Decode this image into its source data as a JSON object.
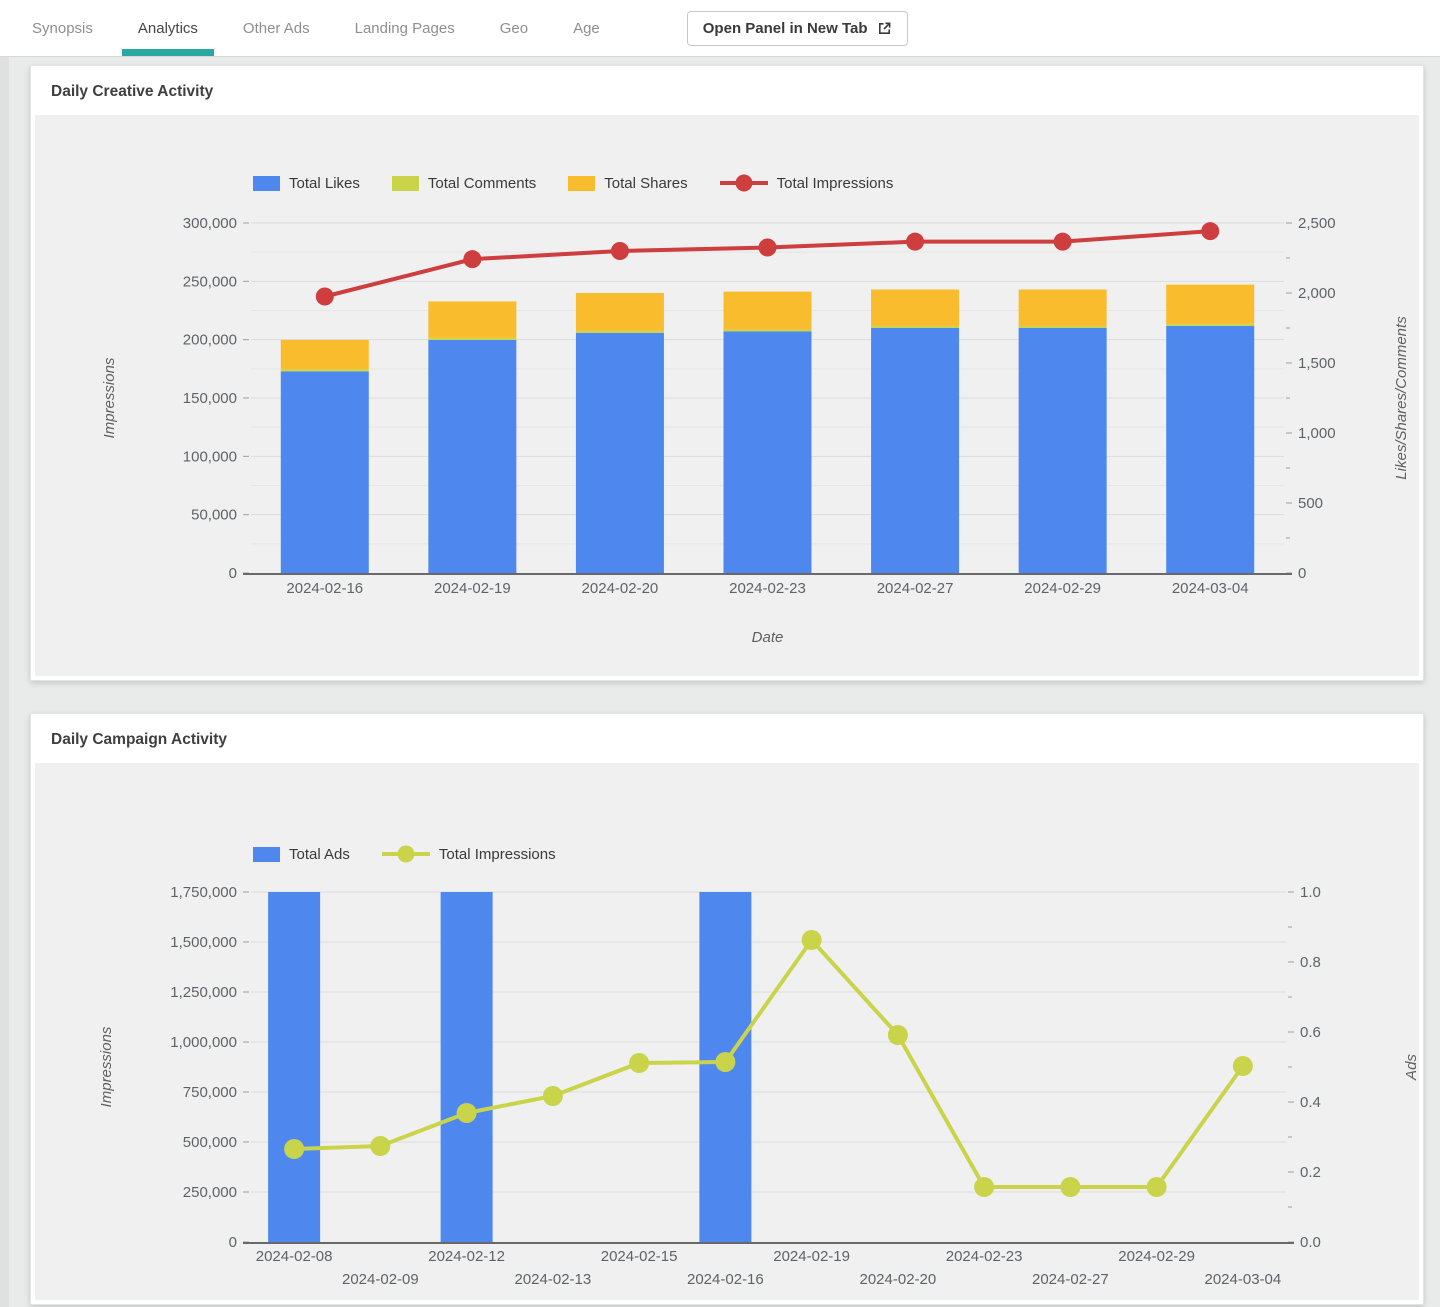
{
  "nav": {
    "tabs": [
      {
        "label": "Synopsis",
        "active": false
      },
      {
        "label": "Analytics",
        "active": true
      },
      {
        "label": "Other Ads",
        "active": false
      },
      {
        "label": "Landing Pages",
        "active": false
      },
      {
        "label": "Geo",
        "active": false
      },
      {
        "label": "Age",
        "active": false
      }
    ],
    "open_panel_button": {
      "label": "Open Panel in New Tab",
      "icon": "external-link-icon"
    }
  },
  "colors": {
    "blue": "#4E88EE",
    "green": "#C9D44A",
    "orange": "#F8BC2C",
    "red": "#CE3E3E",
    "teal": "#2AA8A2",
    "grid": "#DCDCDD",
    "grid_minor": "#E6E6E7",
    "axis_line": "#696969",
    "tick_mark": "#9E9E9E",
    "tick_text": "#5F6368",
    "axis_title": "#606060",
    "chart_bg": "#F0F0F1"
  },
  "chart_data": [
    {
      "type": "bar",
      "subtype": "stacked-bar-with-line-combo",
      "title": "Daily Creative Activity",
      "categories": [
        "2024-02-16",
        "2024-02-19",
        "2024-02-20",
        "2024-02-23",
        "2024-02-27",
        "2024-02-29",
        "2024-03-04"
      ],
      "series": [
        {
          "name": "Total Likes",
          "type": "bar",
          "axis": "right",
          "color": "blue",
          "values": [
            1440,
            1665,
            1715,
            1725,
            1750,
            1750,
            1765
          ]
        },
        {
          "name": "Total Comments",
          "type": "bar",
          "axis": "right",
          "color": "green",
          "values": [
            15,
            15,
            15,
            15,
            15,
            15,
            15
          ]
        },
        {
          "name": "Total Shares",
          "type": "bar",
          "axis": "right",
          "color": "orange",
          "values": [
            210,
            260,
            270,
            270,
            260,
            260,
            280
          ]
        },
        {
          "name": "Total Impressions",
          "type": "line",
          "axis": "left",
          "color": "red",
          "values": [
            237000,
            269000,
            276000,
            279000,
            284000,
            284000,
            293000
          ]
        }
      ],
      "xlabel": "Date",
      "ylabel_left": "Impressions",
      "ylabel_right": "Likes/Shares/Comments",
      "ylim_left": [
        0,
        300000
      ],
      "ylim_right": [
        0,
        2500
      ],
      "ytick_step_left": 50000,
      "ytick_step_right": 500,
      "ytick_labels_left": [
        "0",
        "50,000",
        "100,000",
        "150,000",
        "200,000",
        "250,000",
        "300,000"
      ],
      "ytick_labels_right": [
        "0",
        "500",
        "1,000",
        "1,500",
        "2,000",
        "2,500"
      ],
      "grid": true,
      "minor_gridlines": true,
      "legend_position": "top",
      "stagger_x_labels": false
    },
    {
      "type": "bar",
      "subtype": "bar-with-line-combo",
      "title": "Daily Campaign Activity",
      "categories": [
        "2024-02-08",
        "2024-02-09",
        "2024-02-12",
        "2024-02-13",
        "2024-02-15",
        "2024-02-16",
        "2024-02-19",
        "2024-02-20",
        "2024-02-23",
        "2024-02-27",
        "2024-02-29",
        "2024-03-04"
      ],
      "series": [
        {
          "name": "Total Ads",
          "type": "bar",
          "axis": "right",
          "color": "blue",
          "values": [
            1,
            0,
            1,
            0,
            0,
            1,
            0,
            0,
            0,
            0,
            0,
            0
          ]
        },
        {
          "name": "Total Impressions",
          "type": "line",
          "axis": "left",
          "color": "green",
          "values": [
            465000,
            480000,
            645000,
            730000,
            895000,
            900000,
            1510000,
            1035000,
            275000,
            275000,
            275000,
            880000
          ]
        }
      ],
      "xlabel": "",
      "ylabel_left": "Impressions",
      "ylabel_right": "Ads",
      "ylim_left": [
        0,
        1750000
      ],
      "ylim_right": [
        0,
        1
      ],
      "ytick_step_left": 250000,
      "ytick_step_right": 0.2,
      "ytick_labels_left": [
        "0",
        "250,000",
        "500,000",
        "750,000",
        "1,000,000",
        "1,250,000",
        "1,500,000",
        "1,750,000"
      ],
      "ytick_labels_right": [
        "0.0",
        "0.2",
        "0.4",
        "0.6",
        "0.8",
        "1.0"
      ],
      "grid": true,
      "minor_gridlines": false,
      "legend_position": "top",
      "stagger_x_labels": true
    }
  ]
}
